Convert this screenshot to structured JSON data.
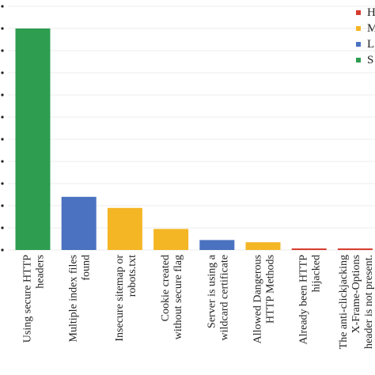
{
  "chart_data": {
    "type": "bar",
    "categories": [
      "Using secure HTTP headers",
      "Multiple index files found",
      "Insecure sitemap or robots.txt",
      "Cookie created without secure flag",
      "Server is using a wildcard certificate",
      "Allowed Dangerous HTTP Methods",
      "Already been HTTP hijacked",
      "The anti-clickjacking X-Frame-Options header is not present."
    ],
    "category_lines": [
      [
        "Using secure HTTP",
        "headers"
      ],
      [
        "Multiple index files",
        "found"
      ],
      [
        "Insecure sitemap or",
        "robots.txt"
      ],
      [
        "Cookie created",
        "without secure flag"
      ],
      [
        "Server is using a",
        "wildcard certificate"
      ],
      [
        "Allowed Dangerous",
        "HTTP Methods"
      ],
      [
        "Already been HTTP",
        "hijacked"
      ],
      [
        "The anti-clickjacking",
        "X-Frame-Options",
        "header is not present."
      ]
    ],
    "values": [
      100,
      24,
      19,
      9.5,
      4.5,
      3.5,
      0.7,
      0.7
    ],
    "bar_groups": [
      "S",
      "L",
      "M",
      "M",
      "L",
      "M",
      "H",
      "H"
    ],
    "ylim": [
      0,
      110
    ],
    "grid": true,
    "legend_position": "top-right",
    "legend": [
      {
        "key": "H",
        "label": "H",
        "color": "#d63b2f"
      },
      {
        "key": "M",
        "label": "M",
        "color": "#f4b625"
      },
      {
        "key": "L",
        "label": "L",
        "color": "#4a72c0"
      },
      {
        "key": "S",
        "label": "S",
        "color": "#2e9d50"
      }
    ]
  }
}
